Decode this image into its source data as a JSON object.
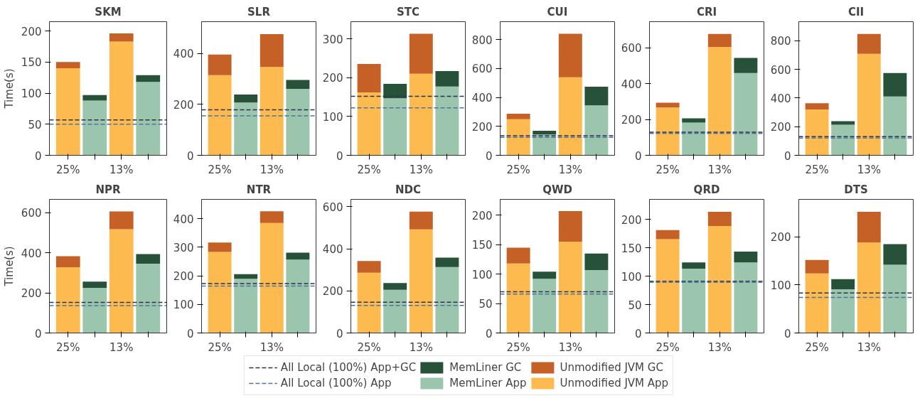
{
  "chart_data": [
    {
      "type": "bar",
      "title": "SKM",
      "ylabel": "Time(s)",
      "categories": [
        "25%",
        null,
        "13%",
        null
      ],
      "stacked": true,
      "ylim": [
        0,
        215
      ],
      "yticks": [
        0,
        50,
        100,
        150,
        200
      ],
      "legend": "bottom",
      "grid": false,
      "series": [
        {
          "name": "Unmodified JVM App",
          "color": "#fdbb4f",
          "values": [
            140,
            null,
            183,
            null
          ]
        },
        {
          "name": "Unmodified JVM GC",
          "color": "#c56026",
          "values": [
            10,
            null,
            13,
            null
          ]
        },
        {
          "name": "MemLiner App",
          "color": "#9bc5ad",
          "values": [
            null,
            88,
            null,
            118
          ]
        },
        {
          "name": "MemLiner GC",
          "color": "#28513a",
          "values": [
            null,
            9,
            null,
            11
          ]
        }
      ],
      "ref_lines": [
        {
          "axis": "y",
          "value": 57,
          "label": "All Local (100%) App+GC",
          "color": "#2f3150",
          "line_style": "dashed"
        },
        {
          "axis": "y",
          "value": 50,
          "label": "All Local (100%) App",
          "color": "#4a76a0",
          "line_style": "dashed"
        }
      ]
    },
    {
      "type": "bar",
      "title": "SLR",
      "categories": [
        "25%",
        null,
        "13%",
        null
      ],
      "stacked": true,
      "ylim": [
        0,
        525
      ],
      "yticks": [
        0,
        200,
        400
      ],
      "series": [
        {
          "color": "#fdbb4f",
          "values": [
            315,
            null,
            347,
            null
          ]
        },
        {
          "color": "#c56026",
          "values": [
            81,
            null,
            129,
            null
          ]
        },
        {
          "color": "#9bc5ad",
          "values": [
            null,
            207,
            null,
            261
          ]
        },
        {
          "color": "#28513a",
          "values": [
            null,
            32,
            null,
            35
          ]
        }
      ],
      "ref_lines": [
        {
          "axis": "y",
          "value": 179,
          "color": "#2f3150",
          "line_style": "dashed"
        },
        {
          "axis": "y",
          "value": 155,
          "color": "#4a76a0",
          "line_style": "dashed"
        }
      ]
    },
    {
      "type": "bar",
      "title": "STC",
      "categories": [
        "25%",
        null,
        "13%",
        null
      ],
      "stacked": true,
      "ylim": [
        0,
        344
      ],
      "yticks": [
        0,
        100,
        200,
        300
      ],
      "series": [
        {
          "color": "#fdbb4f",
          "values": [
            162,
            null,
            210,
            null
          ]
        },
        {
          "color": "#c56026",
          "values": [
            73,
            null,
            103,
            null
          ]
        },
        {
          "color": "#9bc5ad",
          "values": [
            null,
            147,
            null,
            177
          ]
        },
        {
          "color": "#28513a",
          "values": [
            null,
            37,
            null,
            40
          ]
        }
      ],
      "ref_lines": [
        {
          "axis": "y",
          "value": 152,
          "color": "#2f3150",
          "line_style": "dashed"
        },
        {
          "axis": "y",
          "value": 122,
          "color": "#4a76a0",
          "line_style": "dashed"
        }
      ]
    },
    {
      "type": "bar",
      "title": "CUI",
      "categories": [
        "25%",
        null,
        "13%",
        null
      ],
      "stacked": true,
      "ylim": [
        0,
        924
      ],
      "yticks": [
        0,
        200,
        400,
        600,
        800
      ],
      "series": [
        {
          "color": "#fdbb4f",
          "values": [
            250,
            null,
            540,
            null
          ]
        },
        {
          "color": "#c56026",
          "values": [
            38,
            null,
            300,
            null
          ]
        },
        {
          "color": "#9bc5ad",
          "values": [
            null,
            144,
            null,
            345
          ]
        },
        {
          "color": "#28513a",
          "values": [
            null,
            26,
            null,
            129
          ]
        }
      ],
      "ref_lines": [
        {
          "axis": "y",
          "value": 135,
          "color": "#2f3150",
          "line_style": "dashed"
        },
        {
          "axis": "y",
          "value": 124,
          "color": "#4a76a0",
          "line_style": "dashed"
        }
      ]
    },
    {
      "type": "bar",
      "title": "CRI",
      "categories": [
        "25%",
        null,
        "13%",
        null
      ],
      "stacked": true,
      "ylim": [
        0,
        746
      ],
      "yticks": [
        0,
        200,
        400,
        600
      ],
      "series": [
        {
          "color": "#fdbb4f",
          "values": [
            267,
            null,
            605,
            null
          ]
        },
        {
          "color": "#c56026",
          "values": [
            27,
            null,
            73,
            null
          ]
        },
        {
          "color": "#9bc5ad",
          "values": [
            null,
            183,
            null,
            459
          ]
        },
        {
          "color": "#28513a",
          "values": [
            null,
            23,
            null,
            85
          ]
        }
      ],
      "ref_lines": [
        {
          "axis": "y",
          "value": 129,
          "color": "#2f3150",
          "line_style": "dashed"
        },
        {
          "axis": "y",
          "value": 122,
          "color": "#4a76a0",
          "line_style": "dashed"
        }
      ]
    },
    {
      "type": "bar",
      "title": "CII",
      "categories": [
        "25%",
        null,
        "13%",
        null
      ],
      "stacked": true,
      "ylim": [
        0,
        933
      ],
      "yticks": [
        0,
        200,
        400,
        600,
        800
      ],
      "series": [
        {
          "color": "#fdbb4f",
          "values": [
            320,
            null,
            709,
            null
          ]
        },
        {
          "color": "#c56026",
          "values": [
            43,
            null,
            139,
            null
          ]
        },
        {
          "color": "#9bc5ad",
          "values": [
            null,
            214,
            null,
            411
          ]
        },
        {
          "color": "#28513a",
          "values": [
            null,
            24,
            null,
            163
          ]
        }
      ],
      "ref_lines": [
        {
          "axis": "y",
          "value": 130,
          "color": "#2f3150",
          "line_style": "dashed"
        },
        {
          "axis": "y",
          "value": 120,
          "color": "#4a76a0",
          "line_style": "dashed"
        }
      ]
    },
    {
      "type": "bar",
      "title": "NPR",
      "ylabel": "Time(s)",
      "categories": [
        "25%",
        null,
        "13%",
        null
      ],
      "stacked": true,
      "ylim": [
        0,
        666
      ],
      "yticks": [
        0,
        200,
        400,
        600
      ],
      "series": [
        {
          "color": "#fdbb4f",
          "values": [
            328,
            null,
            517,
            null
          ]
        },
        {
          "color": "#c56026",
          "values": [
            55,
            null,
            89,
            null
          ]
        },
        {
          "color": "#9bc5ad",
          "values": [
            null,
            225,
            null,
            345
          ]
        },
        {
          "color": "#28513a",
          "values": [
            null,
            31,
            null,
            48
          ]
        }
      ],
      "ref_lines": [
        {
          "axis": "y",
          "value": 152,
          "color": "#2f3150",
          "line_style": "dashed"
        },
        {
          "axis": "y",
          "value": 136,
          "color": "#4a76a0",
          "line_style": "dashed"
        }
      ]
    },
    {
      "type": "bar",
      "title": "NTR",
      "categories": [
        "25%",
        null,
        "13%",
        null
      ],
      "stacked": true,
      "ylim": [
        0,
        468
      ],
      "yticks": [
        0,
        100,
        200,
        300,
        400
      ],
      "series": [
        {
          "color": "#fdbb4f",
          "values": [
            284,
            null,
            385,
            null
          ]
        },
        {
          "color": "#c56026",
          "values": [
            33,
            null,
            41,
            null
          ]
        },
        {
          "color": "#9bc5ad",
          "values": [
            null,
            190,
            null,
            257
          ]
        },
        {
          "color": "#28513a",
          "values": [
            null,
            16,
            null,
            24
          ]
        }
      ],
      "ref_lines": [
        {
          "axis": "y",
          "value": 173,
          "color": "#2f3150",
          "line_style": "dashed"
        },
        {
          "axis": "y",
          "value": 164,
          "color": "#4a76a0",
          "line_style": "dashed"
        }
      ]
    },
    {
      "type": "bar",
      "title": "NDC",
      "categories": [
        "25%",
        null,
        "13%",
        null
      ],
      "stacked": true,
      "ylim": [
        0,
        635
      ],
      "yticks": [
        0,
        200,
        400,
        600
      ],
      "series": [
        {
          "color": "#fdbb4f",
          "values": [
            286,
            null,
            492,
            null
          ]
        },
        {
          "color": "#c56026",
          "values": [
            56,
            null,
            85,
            null
          ]
        },
        {
          "color": "#9bc5ad",
          "values": [
            null,
            205,
            null,
            313
          ]
        },
        {
          "color": "#28513a",
          "values": [
            null,
            32,
            null,
            45
          ]
        }
      ],
      "ref_lines": [
        {
          "axis": "y",
          "value": 146,
          "color": "#2f3150",
          "line_style": "dashed"
        },
        {
          "axis": "y",
          "value": 131,
          "color": "#4a76a0",
          "line_style": "dashed"
        }
      ]
    },
    {
      "type": "bar",
      "title": "QWD",
      "categories": [
        "25%",
        null,
        "13%",
        null
      ],
      "stacked": true,
      "ylim": [
        0,
        227
      ],
      "yticks": [
        0,
        50,
        100,
        150,
        200
      ],
      "series": [
        {
          "color": "#fdbb4f",
          "values": [
            118,
            null,
            155,
            null
          ]
        },
        {
          "color": "#c56026",
          "values": [
            27,
            null,
            52,
            null
          ]
        },
        {
          "color": "#9bc5ad",
          "values": [
            null,
            92,
            null,
            107
          ]
        },
        {
          "color": "#28513a",
          "values": [
            null,
            12,
            null,
            28
          ]
        }
      ],
      "ref_lines": [
        {
          "axis": "y",
          "value": 70,
          "color": "#2f3150",
          "line_style": "dashed"
        },
        {
          "axis": "y",
          "value": 66,
          "color": "#4a76a0",
          "line_style": "dashed"
        }
      ]
    },
    {
      "type": "bar",
      "title": "QRD",
      "categories": [
        "25%",
        null,
        "13%",
        null
      ],
      "stacked": true,
      "ylim": [
        0,
        235
      ],
      "yticks": [
        0,
        50,
        100,
        150,
        200
      ],
      "series": [
        {
          "color": "#fdbb4f",
          "values": [
            165,
            null,
            188,
            null
          ]
        },
        {
          "color": "#c56026",
          "values": [
            16,
            null,
            25,
            null
          ]
        },
        {
          "color": "#9bc5ad",
          "values": [
            null,
            113,
            null,
            124
          ]
        },
        {
          "color": "#28513a",
          "values": [
            null,
            11,
            null,
            19
          ]
        }
      ],
      "ref_lines": [
        {
          "axis": "y",
          "value": 91,
          "color": "#2f3150",
          "line_style": "dashed"
        },
        {
          "axis": "y",
          "value": 89,
          "color": "#4a76a0",
          "line_style": "dashed"
        }
      ]
    },
    {
      "type": "bar",
      "title": "DTS",
      "categories": [
        "25%",
        null,
        "13%",
        null
      ],
      "stacked": true,
      "ylim": [
        0,
        278
      ],
      "yticks": [
        0,
        100,
        200
      ],
      "series": [
        {
          "color": "#fdbb4f",
          "values": [
            124,
            null,
            188,
            null
          ]
        },
        {
          "color": "#c56026",
          "values": [
            28,
            null,
            64,
            null
          ]
        },
        {
          "color": "#9bc5ad",
          "values": [
            null,
            91,
            null,
            142
          ]
        },
        {
          "color": "#28513a",
          "values": [
            null,
            21,
            null,
            43
          ]
        }
      ],
      "ref_lines": [
        {
          "axis": "y",
          "value": 83,
          "color": "#2f3150",
          "line_style": "dashed"
        },
        {
          "axis": "y",
          "value": 74,
          "color": "#4a76a0",
          "line_style": "dashed"
        }
      ]
    }
  ]
}
